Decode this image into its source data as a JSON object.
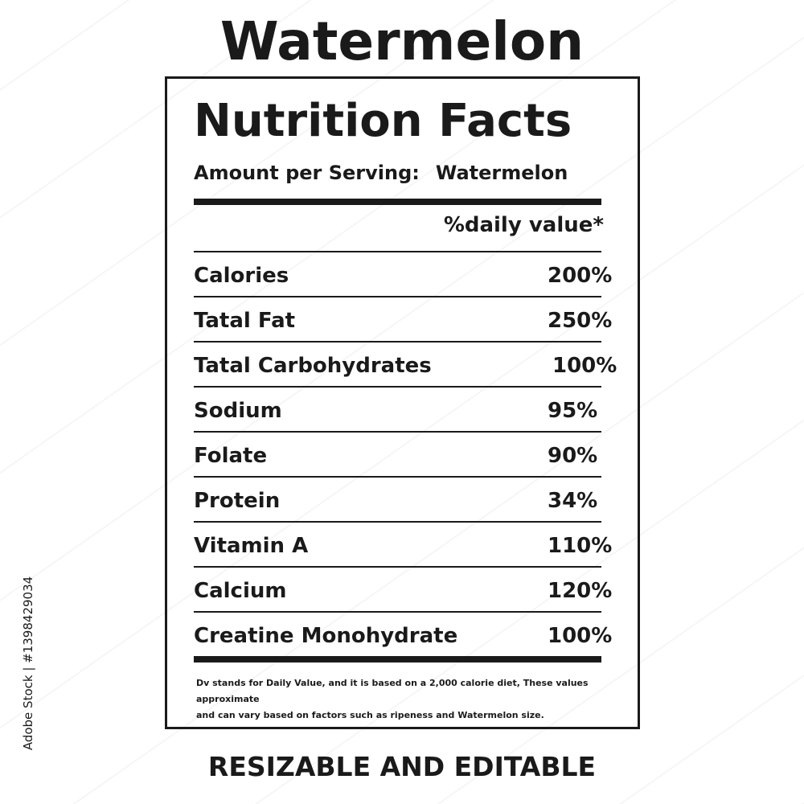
{
  "title": "Watermelon",
  "label": {
    "heading": "Nutrition Facts",
    "serving_label": "Amount per Serving:",
    "serving_value": "Watermelon",
    "dv_header": "%daily value*",
    "rows": [
      {
        "name": "Calories",
        "value": "200%"
      },
      {
        "name": "Tatal Fat",
        "value": "250%"
      },
      {
        "name": "Tatal Carbohydrates",
        "value": "100%"
      },
      {
        "name": "Sodium",
        "value": "95%"
      },
      {
        "name": "Folate",
        "value": "90%"
      },
      {
        "name": "Protein",
        "value": "34%"
      },
      {
        "name": "Vitamin A",
        "value": "110%"
      },
      {
        "name": "Calcium",
        "value": "120%"
      },
      {
        "name": "Creatine Monohydrate",
        "value": "100%"
      }
    ],
    "footnote_line1": "Dv stands for Daily Value, and it is based on a 2,000 calorie diet, These values approximate",
    "footnote_line2": "and can vary based on factors such as ripeness and Watermelon size."
  },
  "caption": "RESIZABLE AND EDITABLE",
  "side_text": "Adobe Stock | #1398429034",
  "colors": {
    "ink": "#1a1a1a",
    "background": "#ffffff"
  }
}
